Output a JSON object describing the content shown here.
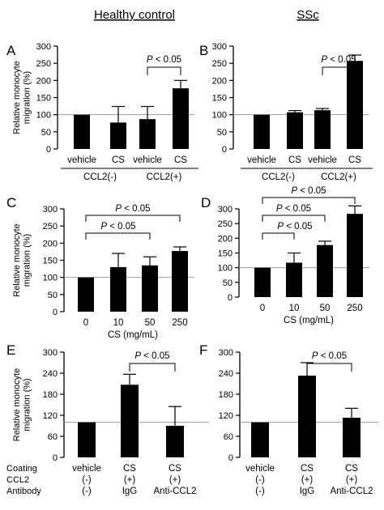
{
  "figure": {
    "col_titles": [
      "Healthy control",
      "SSc"
    ],
    "row_labels": [
      "Coating",
      "CCL2",
      "Antibody"
    ]
  },
  "chart_data": [
    {
      "id": "A",
      "type": "bar",
      "letter": "A",
      "ylabel_lines": [
        "Relative monocyte",
        "migration (%)"
      ],
      "ylim": [
        0,
        300
      ],
      "yticks": [
        0,
        50,
        100,
        150,
        200,
        250,
        300
      ],
      "refline": 100,
      "categories": [
        "vehicle",
        "CS",
        "vehicle",
        "CS"
      ],
      "values": [
        100,
        77,
        87,
        177
      ],
      "errors": [
        0,
        47,
        37,
        23
      ],
      "groups": [
        {
          "label": "CCL2(-)",
          "from": 0,
          "to": 1
        },
        {
          "label": "CCL2(+)",
          "from": 2,
          "to": 3
        }
      ],
      "brackets": [
        {
          "from": 2,
          "to": 3,
          "label": "P < 0.05",
          "style": "vertical"
        }
      ]
    },
    {
      "id": "B",
      "type": "bar",
      "letter": "B",
      "ylim": [
        0,
        300
      ],
      "yticks": [
        0,
        50,
        100,
        150,
        200,
        250,
        300
      ],
      "refline": 100,
      "categories": [
        "vehicle",
        "CS",
        "vehicle",
        "CS"
      ],
      "values": [
        100,
        107,
        113,
        257
      ],
      "errors": [
        0,
        5,
        5,
        17
      ],
      "groups": [
        {
          "label": "CCL2(-)",
          "from": 0,
          "to": 1
        },
        {
          "label": "CCL2(+)",
          "from": 2,
          "to": 3
        }
      ],
      "brackets": [
        {
          "from": 2,
          "to": 3,
          "label": "P < 0.05",
          "style": "vertical"
        }
      ]
    },
    {
      "id": "C",
      "type": "bar",
      "letter": "C",
      "ylabel_lines": [
        "Relative monocyte",
        "migration (%)"
      ],
      "ylim": [
        0,
        300
      ],
      "yticks": [
        0,
        50,
        100,
        150,
        200,
        250,
        300
      ],
      "refline": 100,
      "categories": [
        "0",
        "10",
        "50",
        "250"
      ],
      "xlabel": "CS (mg/mL)",
      "values": [
        100,
        130,
        135,
        177
      ],
      "errors": [
        0,
        40,
        25,
        12
      ],
      "brackets": [
        {
          "from": 0,
          "to": 2,
          "label": "P < 0.05",
          "style": "bracket",
          "level": 1
        },
        {
          "from": 0,
          "to": 3,
          "label": "P < 0.05",
          "style": "bracket",
          "level": 2
        }
      ]
    },
    {
      "id": "D",
      "type": "bar",
      "letter": "D",
      "ylim": [
        0,
        300
      ],
      "yticks": [
        0,
        50,
        100,
        150,
        200,
        250,
        300
      ],
      "refline": 100,
      "categories": [
        "0",
        "10",
        "50",
        "250"
      ],
      "xlabel": "CS (mg/mL)",
      "values": [
        100,
        117,
        177,
        283
      ],
      "errors": [
        0,
        33,
        13,
        27
      ],
      "brackets": [
        {
          "from": 0,
          "to": 1,
          "label": "P < 0.05",
          "style": "bracket",
          "level": 1
        },
        {
          "from": 0,
          "to": 2,
          "label": "P < 0.05",
          "style": "bracket",
          "level": 2
        },
        {
          "from": 0,
          "to": 3,
          "label": "P < 0.05",
          "style": "bracket",
          "level": 3
        }
      ]
    },
    {
      "id": "E",
      "type": "bar",
      "letter": "E",
      "ylabel_lines": [
        "Relative monocyte",
        "migration (%)"
      ],
      "ylim": [
        0,
        300
      ],
      "yticks": [
        0,
        60,
        120,
        180,
        240,
        300
      ],
      "refline": 100,
      "categories": [
        "vehicle",
        "CS",
        "CS"
      ],
      "rows": [
        [
          "(-)",
          "(+)",
          "(+)"
        ],
        [
          "(-)",
          "IgG",
          "Anti-CCL2"
        ]
      ],
      "values": [
        100,
        207,
        90
      ],
      "errors": [
        0,
        30,
        55
      ],
      "brackets": [
        {
          "from": 1,
          "to": 2,
          "label": "P < 0.05",
          "style": "vertical"
        }
      ]
    },
    {
      "id": "F",
      "type": "bar",
      "letter": "F",
      "ylim": [
        0,
        300
      ],
      "yticks": [
        0,
        60,
        120,
        180,
        240,
        300
      ],
      "refline": 100,
      "categories": [
        "vehicle",
        "CS",
        "CS"
      ],
      "rows": [
        [
          "(-)",
          "(+)",
          "(+)"
        ],
        [
          "(-)",
          "IgG",
          "Anti-CCL2"
        ]
      ],
      "values": [
        100,
        233,
        113
      ],
      "errors": [
        0,
        37,
        27
      ],
      "brackets": [
        {
          "from": 1,
          "to": 2,
          "label": "P < 0.05",
          "style": "vertical"
        }
      ]
    }
  ]
}
